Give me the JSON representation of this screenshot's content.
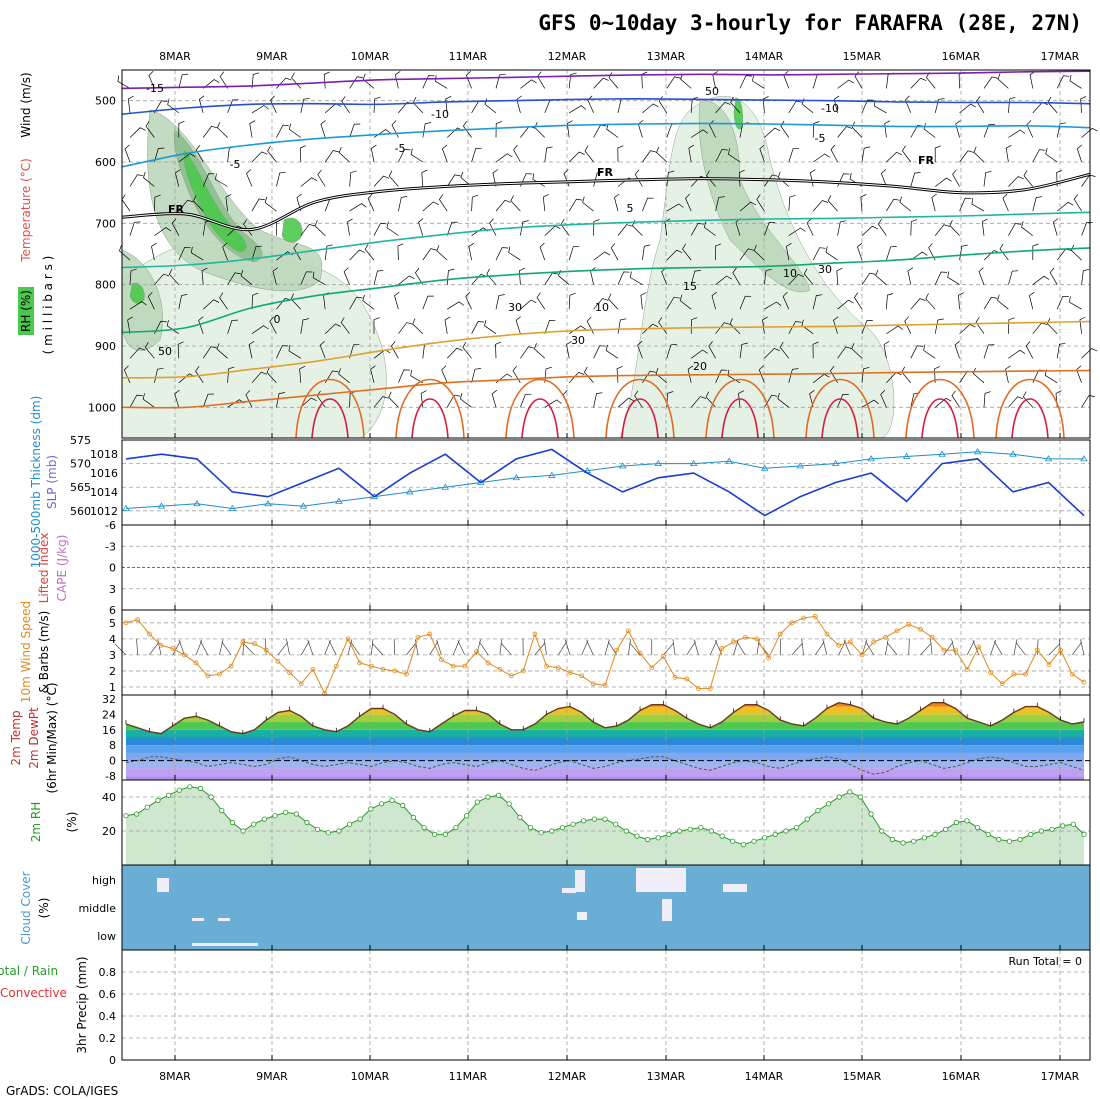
{
  "header": {
    "title": "GFS 0~10day 3-hourly for FARAFRA (28E, 27N)",
    "credit": "GrADS: COLA/IGES",
    "run_total": "Run Total = 0"
  },
  "colors": {
    "wind_barb": "#000000",
    "freezing": "#000000",
    "rh_light": "#e3f0e3",
    "rh_mid": "#bcd8bc",
    "rh_dark": "#8fbf8f",
    "rh_green": "#4cc84c",
    "thickness": "#1e8fc8",
    "slp": "#1c3bd0",
    "lifted_index": "#e04040",
    "cape": "#c070c0",
    "wind10": "#e08a1a",
    "rh2m": "#2a9a2a",
    "cloud_bg": "#6aaed6",
    "cloud_fill": "#f0eef8",
    "grid": "#a0a0a0"
  },
  "chart_data": [
    {
      "id": "upper-air",
      "type": "line",
      "title": "GFS 0~10day 3-hourly for FARAFRA (28E, 27N)",
      "ylabel_parts": [
        "Wind (m/s)",
        "Temperature (°C)",
        "RH (%)",
        "( m i l l i b a r s )"
      ],
      "x_ticks": [
        "8MAR",
        "9MAR",
        "10MAR",
        "11MAR",
        "12MAR",
        "13MAR",
        "14MAR",
        "15MAR",
        "16MAR",
        "17MAR"
      ],
      "y_ticks": [
        500,
        600,
        700,
        800,
        900,
        1000
      ],
      "ylim": [
        450,
        1050
      ],
      "freezing_label": "FR",
      "temperature_labels": [
        "-15",
        "-10",
        "-10",
        "-5",
        "-5",
        "-5",
        "0",
        "5",
        "10",
        "15",
        "20"
      ],
      "rh_labels": [
        "50",
        "50",
        "30",
        "30",
        "10",
        "30"
      ],
      "series": [
        {
          "temp": -15,
          "color": "#7d1fb3",
          "values": [
            480,
            478,
            476,
            471,
            466,
            464,
            462,
            460,
            458,
            457,
            458,
            457,
            456,
            455,
            453,
            452
          ]
        },
        {
          "temp": -10,
          "color": "#2452d0",
          "values": [
            522,
            512,
            506,
            505,
            506,
            502,
            500,
            498,
            497,
            498,
            499,
            500,
            502,
            503,
            503,
            505
          ]
        },
        {
          "temp": -5,
          "color": "#1c9ad8",
          "values": [
            608,
            586,
            572,
            562,
            555,
            549,
            544,
            540,
            538,
            537,
            538,
            540,
            542,
            542,
            541,
            544
          ]
        },
        {
          "temp": "FR",
          "color": "#000000",
          "values": [
            690,
            685,
            710,
            665,
            648,
            640,
            635,
            632,
            629,
            627,
            629,
            633,
            640,
            650,
            645,
            620
          ]
        },
        {
          "temp": 5,
          "color": "#22b6a0",
          "values": [
            772,
            768,
            758,
            744,
            730,
            718,
            708,
            702,
            698,
            695,
            693,
            692,
            690,
            688,
            685,
            682
          ]
        },
        {
          "temp": 10,
          "color": "#10a877",
          "values": [
            878,
            870,
            838,
            818,
            805,
            792,
            784,
            778,
            774,
            772,
            770,
            765,
            760,
            752,
            745,
            740
          ]
        },
        {
          "temp": 15,
          "color": "#e0a030",
          "values": [
            952,
            950,
            938,
            925,
            908,
            893,
            882,
            875,
            872,
            870,
            869,
            868,
            866,
            864,
            862,
            860
          ]
        },
        {
          "temp": 20,
          "color": "#e07020",
          "values": [
            1000,
            1000,
            990,
            980,
            970,
            960,
            955,
            950,
            948,
            947,
            946,
            945,
            943,
            942,
            941,
            940
          ]
        }
      ]
    },
    {
      "id": "thickness-slp",
      "type": "line",
      "ylabel_parts": [
        "1000-500mb Thickness (dm)",
        "SLP (mb)"
      ],
      "y_ticks_left": [
        560,
        565,
        570,
        575
      ],
      "y_ticks_right": [
        1012,
        1014,
        1016,
        1018
      ],
      "series": [
        {
          "name": "Thickness",
          "values": [
            560.5,
            561,
            561.5,
            560.5,
            561.5,
            561,
            562,
            563,
            564,
            565,
            566,
            567,
            567.5,
            568.5,
            569.5,
            570,
            570,
            570.5,
            569,
            569.5,
            570,
            571,
            571.5,
            572,
            572.5,
            572,
            571,
            571
          ]
        },
        {
          "name": "SLP",
          "values": [
            1017.5,
            1018,
            1017.5,
            1014,
            1013.5,
            1015,
            1016.5,
            1013.5,
            1016,
            1018,
            1015,
            1017.5,
            1018.5,
            1016,
            1014,
            1015.5,
            1016,
            1014,
            1011.5,
            1013.5,
            1015,
            1016,
            1013,
            1017,
            1017.5,
            1014,
            1015,
            1011.5
          ]
        }
      ]
    },
    {
      "id": "lifted-cape",
      "type": "line",
      "ylabel_parts": [
        "Lifted Index",
        "CAPE (J/kg)"
      ],
      "y_ticks": [
        -6,
        -3,
        0,
        3,
        6
      ],
      "ylim": [
        -6,
        6
      ]
    },
    {
      "id": "wind10m",
      "type": "line",
      "ylabel_parts": [
        "10m Wind Speed",
        "& Barbs (m/s)"
      ],
      "y_ticks": [
        1,
        2,
        3,
        4,
        5
      ],
      "ylim": [
        0.5,
        5.8
      ],
      "values": [
        5,
        5.2,
        4.3,
        3.6,
        3.4,
        3,
        2.5,
        1.7,
        1.8,
        2.3,
        3.8,
        3.7,
        3.3,
        2.6,
        1.9,
        1.2,
        2.1,
        0.6,
        2.3,
        4,
        2.5,
        2.3,
        2.1,
        2,
        1.8,
        4.1,
        4.3,
        2.7,
        2.3,
        2.3,
        3.2,
        2.5,
        2.1,
        1.7,
        2,
        4.3,
        2.3,
        2.2,
        1.9,
        1.7,
        1.2,
        1.1,
        3.3,
        4.5,
        3.1,
        2.2,
        2.9,
        1.6,
        1.5,
        0.9,
        0.9,
        3.4,
        3.8,
        4.1,
        4,
        2.8,
        4.3,
        5,
        5.3,
        5.4,
        4.3,
        3.6,
        3.8,
        3,
        3.8,
        4.1,
        4.5,
        4.9,
        4.6,
        4.1,
        3.3,
        3.3,
        2.1,
        3.5,
        1.9,
        1.2,
        1.8,
        1.8,
        3.3,
        2.4,
        3.3,
        1.8,
        1.3
      ]
    },
    {
      "id": "temp2m",
      "type": "area",
      "ylabel_parts": [
        "2m Temp",
        "2m DewPt",
        "(6hr Min/Max) (°C)"
      ],
      "y_ticks": [
        -8,
        0,
        8,
        16,
        24,
        32
      ],
      "ylim": [
        -10,
        34
      ],
      "temperature": [
        19,
        17,
        15,
        14,
        18,
        22,
        23,
        21,
        18,
        15,
        14,
        16,
        21,
        25,
        26,
        23,
        18,
        16,
        15,
        18,
        23,
        27,
        27,
        24,
        19,
        16,
        15,
        19,
        23,
        26,
        26,
        24,
        19,
        16,
        16,
        19,
        24,
        27,
        28,
        25,
        20,
        17,
        18,
        21,
        26,
        29,
        29,
        26,
        22,
        19,
        17,
        20,
        25,
        29,
        29,
        26,
        21,
        19,
        18,
        22,
        27,
        30,
        29,
        27,
        22,
        20,
        19,
        22,
        26,
        30,
        30,
        27,
        22,
        20,
        18,
        21,
        25,
        28,
        28,
        25,
        21,
        19,
        20
      ],
      "dewpoint": [
        -1,
        0,
        2,
        2,
        1,
        0,
        -1,
        -3,
        -2,
        -1,
        -2,
        -3,
        -2,
        1,
        2,
        0,
        -2,
        -3,
        -2,
        -1,
        -2,
        -3,
        -1,
        0,
        -1,
        -3,
        -4,
        -2,
        -1,
        -2,
        -3,
        -1,
        0,
        -2,
        -4,
        -5,
        -3,
        -1,
        0,
        -2,
        -4,
        -3,
        -1,
        0,
        1,
        2,
        2,
        0,
        -2,
        -4,
        -5,
        -3,
        -1,
        0,
        -1,
        -3,
        -4,
        -2,
        0,
        1,
        2,
        1,
        -2,
        -5,
        -7,
        -6,
        -3,
        -1,
        0,
        -2,
        -4,
        -3,
        -1,
        1,
        2,
        1,
        -1,
        -3,
        -3,
        -2,
        -1,
        -3,
        -5
      ]
    },
    {
      "id": "rh2m",
      "type": "area",
      "ylabel_parts": [
        "2m RH",
        "(%)"
      ],
      "y_ticks": [
        20,
        40
      ],
      "ylim": [
        0,
        50
      ],
      "values": [
        29,
        30,
        34,
        38,
        41,
        44,
        46,
        45,
        40,
        32,
        25,
        20,
        24,
        27,
        29,
        31,
        30,
        25,
        21,
        19,
        20,
        24,
        27,
        33,
        36,
        38,
        35,
        28,
        22,
        18,
        18,
        22,
        29,
        37,
        40,
        41,
        36,
        28,
        22,
        19,
        20,
        22,
        24,
        26,
        27,
        27,
        24,
        20,
        17,
        15,
        16,
        18,
        20,
        21,
        22,
        20,
        17,
        14,
        12,
        14,
        16,
        18,
        20,
        22,
        27,
        32,
        36,
        40,
        43,
        40,
        30,
        20,
        15,
        13,
        14,
        16,
        18,
        21,
        25,
        26,
        22,
        18,
        15,
        14,
        15,
        18,
        20,
        21,
        23,
        24,
        18
      ]
    },
    {
      "id": "cloud",
      "type": "heatmap",
      "ylabel_parts": [
        "Cloud Cover",
        "(%)"
      ],
      "levels": [
        "high",
        "middle",
        "low"
      ]
    },
    {
      "id": "precip",
      "type": "bar",
      "ylabel_parts": [
        "Total / Rain",
        "Convective",
        "3hr Precip (mm)"
      ],
      "y_ticks": [
        0,
        0.2,
        0.4,
        0.6,
        0.8
      ],
      "ylim": [
        0,
        1
      ],
      "values": []
    }
  ]
}
